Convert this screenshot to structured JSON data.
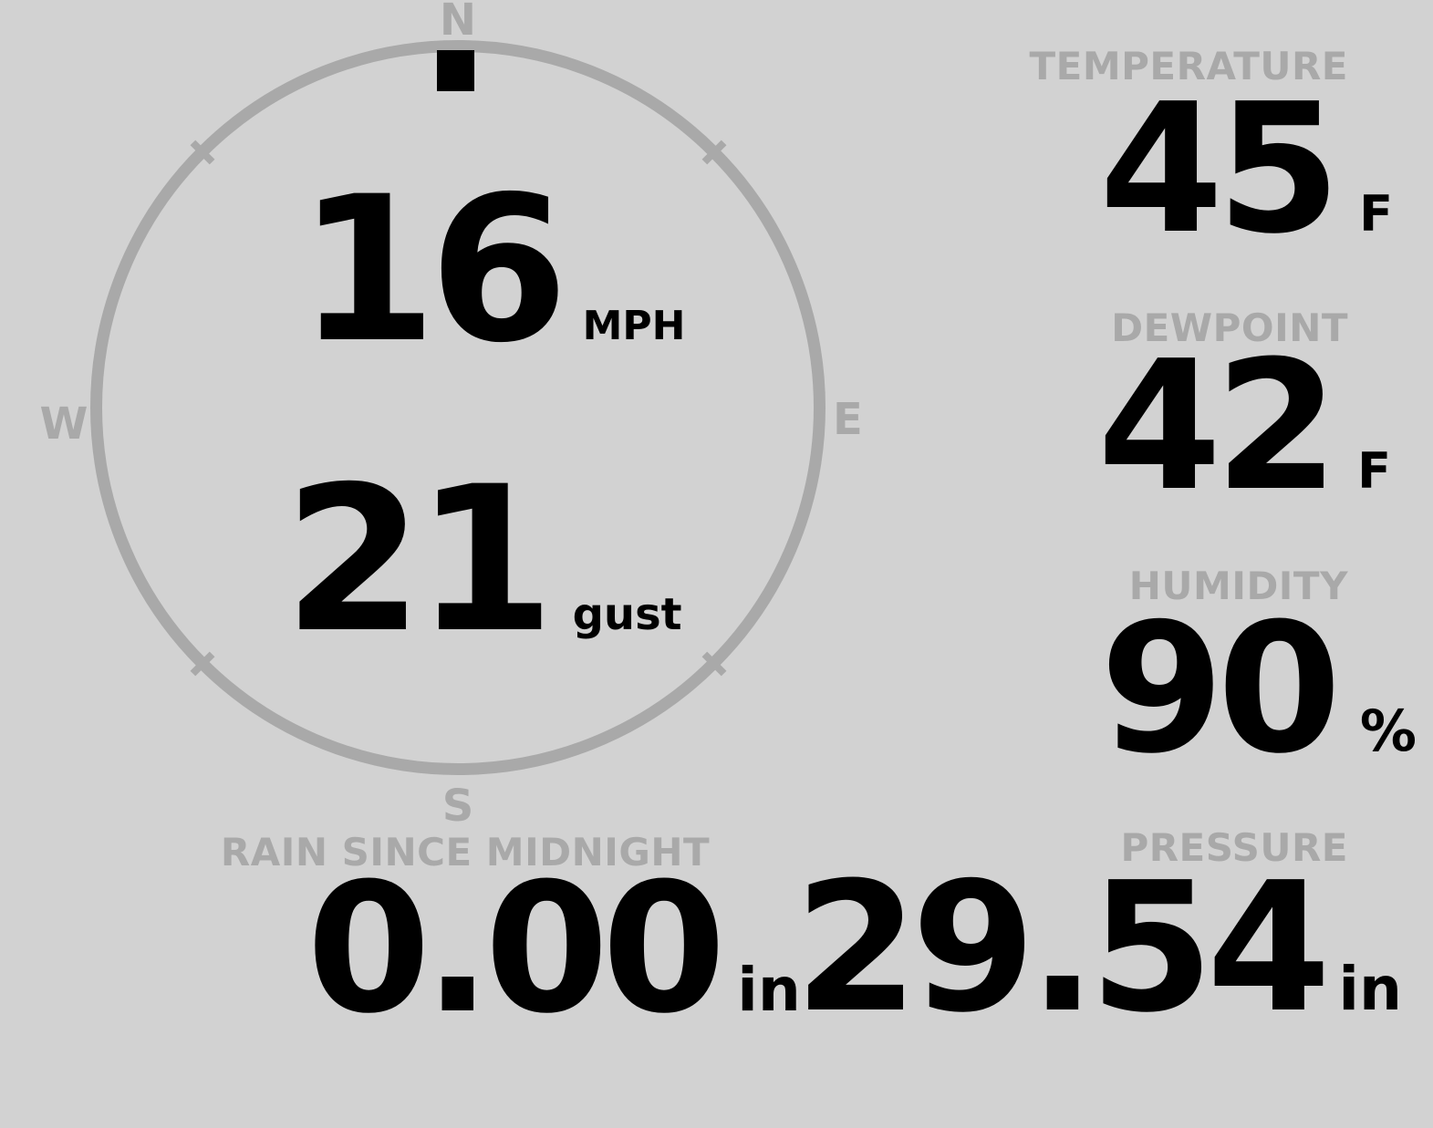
{
  "colors": {
    "background": "#d2d2d2",
    "muted_gray": "#a9a9a9",
    "value_ink": "#000000",
    "wind_marker": "#000000"
  },
  "compass": {
    "north": "N",
    "east": "E",
    "south": "S",
    "west": "W",
    "wind_direction": "N"
  },
  "wind": {
    "speed_value": "16",
    "speed_unit": "MPH",
    "gust_value": "21",
    "gust_unit": "gust"
  },
  "temperature": {
    "label": "TEMPERATURE",
    "value": "45",
    "unit": "F"
  },
  "dewpoint": {
    "label": "DEWPOINT",
    "value": "42",
    "unit": "F"
  },
  "humidity": {
    "label": "HUMIDITY",
    "value": "90",
    "unit": "%"
  },
  "rain": {
    "label": "RAIN SINCE MIDNIGHT",
    "value": "0.00",
    "unit": "in"
  },
  "pressure": {
    "label": "PRESSURE",
    "value": "29.54",
    "unit": "in"
  }
}
